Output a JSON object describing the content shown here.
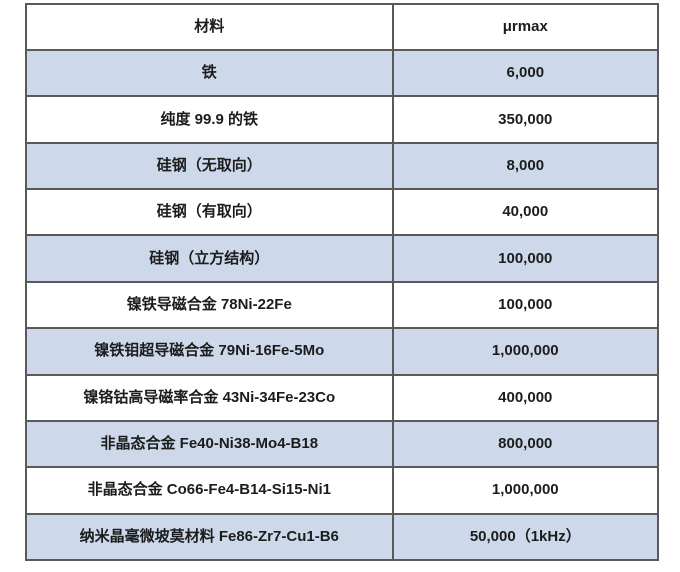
{
  "table": {
    "columns": [
      {
        "label": "材料"
      },
      {
        "label": "μrmax"
      }
    ],
    "rows": [
      {
        "material": "铁",
        "value": "6,000"
      },
      {
        "material": "纯度 99.9 的铁",
        "value": "350,000"
      },
      {
        "material": "硅钢（无取向）",
        "value": "8,000"
      },
      {
        "material": "硅钢（有取向）",
        "value": "40,000"
      },
      {
        "material": "硅钢（立方结构）",
        "value": "100,000"
      },
      {
        "material": "镍铁导磁合金 78Ni-22Fe",
        "value": "100,000"
      },
      {
        "material": "镍铁钼超导磁合金 79Ni-16Fe-5Mo",
        "value": "1,000,000"
      },
      {
        "material": "镍铬钴高导磁率合金 43Ni-34Fe-23Co",
        "value": "400,000"
      },
      {
        "material": "非晶态合金 Fe40-Ni38-Mo4-B18",
        "value": "800,000"
      },
      {
        "material": "非晶态合金 Co66-Fe4-B14-Si15-Ni1",
        "value": "1,000,000"
      },
      {
        "material": "纳米晶毫微坡莫材料 Fe86-Zr7-Cu1-B6",
        "value": "50,000（1kHz）"
      }
    ],
    "colors": {
      "alt_row_background": "#cdd9ea",
      "base_row_background": "#ffffff",
      "border": "#595959",
      "text": "#1c1c1c"
    }
  }
}
